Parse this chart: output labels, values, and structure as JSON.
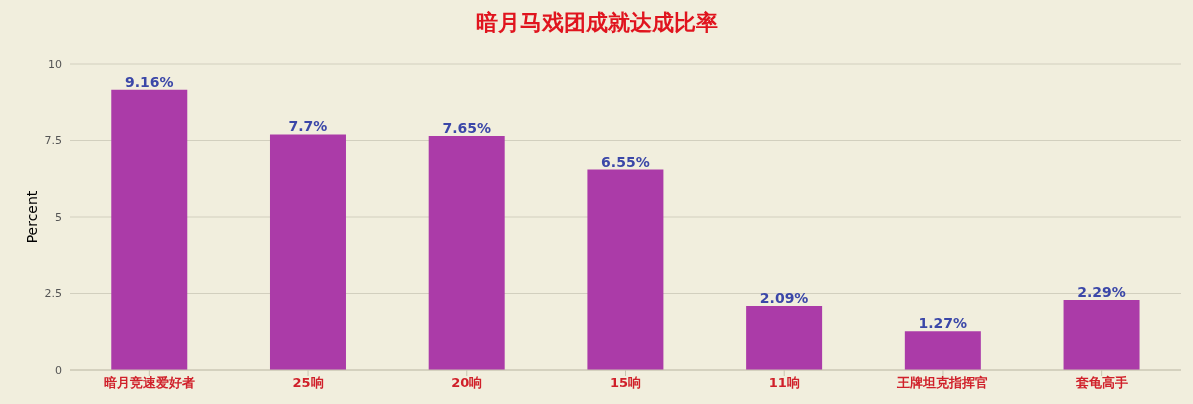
{
  "chart_data": {
    "type": "bar",
    "title": "暗月马戏团成就达成比率",
    "ylabel": "Percent",
    "categories": [
      "暗月竞速爱好者",
      "25响",
      "20响",
      "15响",
      "11响",
      "王牌坦克指挥官",
      "套龟高手"
    ],
    "values": [
      9.16,
      7.7,
      7.65,
      6.55,
      2.09,
      1.27,
      2.29
    ],
    "value_labels": [
      "9.16%",
      "7.7%",
      "7.65%",
      "6.55%",
      "2.09%",
      "1.27%",
      "2.29%"
    ],
    "color": "#ab3ba8",
    "ylim": [
      0,
      10
    ],
    "yticks": [
      0,
      2.5,
      5,
      7.5,
      10
    ],
    "grid": "y",
    "legend": false
  }
}
